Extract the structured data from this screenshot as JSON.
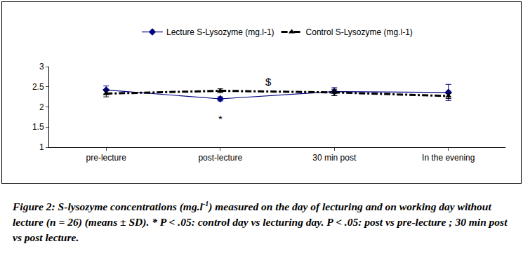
{
  "chart_data": {
    "type": "line",
    "categories": [
      "pre-lecture",
      "post-lecture",
      "30 min post",
      "In the evening"
    ],
    "series": [
      {
        "name": "Lecture S-Lysozyme (mg.l-1)",
        "color": "#000080",
        "marker": "diamond",
        "line_style": "solid",
        "values": [
          2.42,
          2.2,
          2.38,
          2.36
        ],
        "error": [
          0.1,
          0.05,
          0.1,
          0.2
        ]
      },
      {
        "name": "Control S-Lysozyme (mg.l-1)",
        "color": "#000000",
        "marker": "triangle-up",
        "line_style": "dashdot",
        "values": [
          2.33,
          2.4,
          2.36,
          2.27
        ],
        "error": [
          0.08,
          0.05,
          0.08,
          0.06
        ]
      }
    ],
    "ylim": [
      1,
      3
    ],
    "yticks": [
      1,
      1.5,
      2,
      2.5,
      3
    ],
    "grid": false,
    "legend": "top",
    "annotations": [
      {
        "text": "*",
        "x": 1,
        "y": 1.7
      },
      {
        "text": "$",
        "x": 1.42,
        "y": 2.62
      }
    ]
  },
  "caption": [
    {
      "text": "Figure 2: ",
      "style": "normal"
    },
    {
      "text": "S-lysozyme concentrations (mg.l",
      "style": "italic"
    },
    {
      "text": "-1",
      "style": "sup"
    },
    {
      "text": ") measured on the day of lecturing and on working day without lecture (n = 26) (means ± SD). * P < .05: control day vs lecturing day. P < .05: post vs pre-lecture ; 30 min post vs post lecture.",
      "style": "italic"
    }
  ]
}
